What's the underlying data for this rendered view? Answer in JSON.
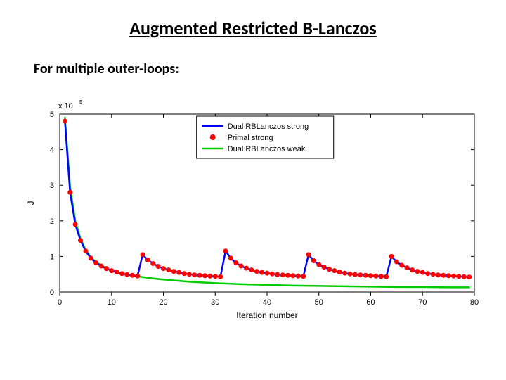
{
  "title": {
    "text": "Augmented Restricted B-Lanczos",
    "fontsize": 26
  },
  "subtitle": {
    "text": "For multiple outer-loops:",
    "fontsize": 20
  },
  "chart": {
    "type": "line+scatter",
    "background_color": "#ffffff",
    "axis_color": "#000000",
    "exponent_label": "x 10",
    "exponent_value": "5",
    "xlabel": "Iteration number",
    "ylabel": "J",
    "label_fontsize": 12,
    "tick_fontsize": 11,
    "xlim": [
      0,
      80
    ],
    "ylim": [
      0,
      5
    ],
    "xticks": [
      0,
      10,
      20,
      30,
      40,
      50,
      60,
      70,
      80
    ],
    "yticks": [
      0,
      1,
      2,
      3,
      4,
      5
    ],
    "legend": {
      "position": "top-center",
      "entries": [
        {
          "label": "Dual RBLanczos strong",
          "type": "line",
          "color": "#0000ff",
          "linewidth": 2.5
        },
        {
          "label": "Primal strong",
          "type": "marker",
          "color": "#ff0000",
          "marker": "circle",
          "markersize": 4
        },
        {
          "label": "Dual RBLanczos weak",
          "type": "line",
          "color": "#00cc00",
          "linewidth": 2.5
        }
      ]
    },
    "series": {
      "dual_strong": {
        "color": "#0000ff",
        "linewidth": 2.5,
        "x": [
          1,
          2,
          3,
          4,
          5,
          6,
          7,
          8,
          9,
          10,
          11,
          12,
          13,
          14,
          15,
          16,
          17,
          18,
          19,
          20,
          21,
          22,
          23,
          24,
          25,
          26,
          27,
          28,
          29,
          30,
          31,
          32,
          33,
          34,
          35,
          36,
          37,
          38,
          39,
          40,
          41,
          42,
          43,
          44,
          45,
          46,
          47,
          48,
          49,
          50,
          51,
          52,
          53,
          54,
          55,
          56,
          57,
          58,
          59,
          60,
          61,
          62,
          63,
          64,
          65,
          66,
          67,
          68,
          69,
          70,
          71,
          72,
          73,
          74,
          75,
          76,
          77,
          78,
          79
        ],
        "y": [
          4.8,
          2.8,
          1.9,
          1.45,
          1.15,
          0.95,
          0.82,
          0.73,
          0.66,
          0.6,
          0.56,
          0.52,
          0.49,
          0.47,
          0.45,
          1.05,
          0.9,
          0.8,
          0.72,
          0.66,
          0.62,
          0.58,
          0.55,
          0.52,
          0.5,
          0.48,
          0.47,
          0.46,
          0.45,
          0.44,
          0.43,
          1.15,
          0.95,
          0.82,
          0.73,
          0.67,
          0.62,
          0.58,
          0.55,
          0.53,
          0.51,
          0.49,
          0.48,
          0.47,
          0.46,
          0.45,
          0.44,
          1.05,
          0.88,
          0.77,
          0.7,
          0.64,
          0.6,
          0.56,
          0.53,
          0.51,
          0.49,
          0.48,
          0.47,
          0.46,
          0.45,
          0.44,
          0.43,
          1.0,
          0.85,
          0.75,
          0.68,
          0.62,
          0.58,
          0.55,
          0.52,
          0.5,
          0.48,
          0.47,
          0.46,
          0.45,
          0.44,
          0.43,
          0.42
        ]
      },
      "primal_strong": {
        "color": "#ff0000",
        "markersize": 3.5,
        "x": [
          1,
          2,
          3,
          4,
          5,
          6,
          7,
          8,
          9,
          10,
          11,
          12,
          13,
          14,
          15,
          16,
          17,
          18,
          19,
          20,
          21,
          22,
          23,
          24,
          25,
          26,
          27,
          28,
          29,
          30,
          31,
          32,
          33,
          34,
          35,
          36,
          37,
          38,
          39,
          40,
          41,
          42,
          43,
          44,
          45,
          46,
          47,
          48,
          49,
          50,
          51,
          52,
          53,
          54,
          55,
          56,
          57,
          58,
          59,
          60,
          61,
          62,
          63,
          64,
          65,
          66,
          67,
          68,
          69,
          70,
          71,
          72,
          73,
          74,
          75,
          76,
          77,
          78,
          79
        ],
        "y": [
          4.8,
          2.8,
          1.9,
          1.45,
          1.15,
          0.95,
          0.82,
          0.73,
          0.66,
          0.6,
          0.56,
          0.52,
          0.49,
          0.47,
          0.45,
          1.05,
          0.9,
          0.8,
          0.72,
          0.66,
          0.62,
          0.58,
          0.55,
          0.52,
          0.5,
          0.48,
          0.47,
          0.46,
          0.45,
          0.44,
          0.43,
          1.15,
          0.95,
          0.82,
          0.73,
          0.67,
          0.62,
          0.58,
          0.55,
          0.53,
          0.51,
          0.49,
          0.48,
          0.47,
          0.46,
          0.45,
          0.44,
          1.05,
          0.88,
          0.77,
          0.7,
          0.64,
          0.6,
          0.56,
          0.53,
          0.51,
          0.49,
          0.48,
          0.47,
          0.46,
          0.45,
          0.44,
          0.43,
          1.0,
          0.85,
          0.75,
          0.68,
          0.62,
          0.58,
          0.55,
          0.52,
          0.5,
          0.48,
          0.47,
          0.46,
          0.45,
          0.44,
          0.43,
          0.42
        ]
      },
      "dual_weak": {
        "color": "#00cc00",
        "linewidth": 2.5,
        "x": [
          1,
          2,
          3,
          4,
          5,
          6,
          7,
          8,
          9,
          10,
          12,
          14,
          16,
          18,
          20,
          25,
          30,
          35,
          40,
          45,
          50,
          55,
          60,
          65,
          70,
          75,
          79
        ],
        "y": [
          4.9,
          2.95,
          2.0,
          1.5,
          1.18,
          0.98,
          0.84,
          0.75,
          0.67,
          0.6,
          0.52,
          0.46,
          0.42,
          0.38,
          0.35,
          0.29,
          0.25,
          0.22,
          0.2,
          0.18,
          0.17,
          0.16,
          0.15,
          0.14,
          0.14,
          0.13,
          0.13
        ]
      }
    }
  }
}
